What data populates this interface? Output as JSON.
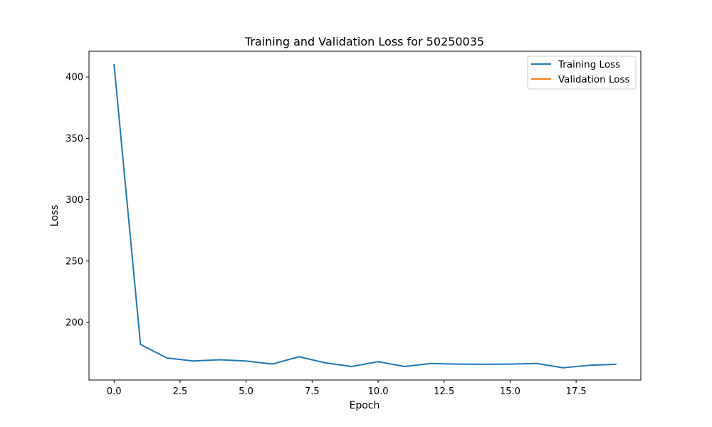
{
  "chart_data": {
    "type": "line",
    "title": "Training and Validation Loss for 50250035",
    "xlabel": "Epoch",
    "ylabel": "Loss",
    "xlim": [
      -0.95,
      19.95
    ],
    "ylim": [
      153,
      421
    ],
    "xticks": [
      0,
      2.5,
      5,
      7.5,
      10,
      12.5,
      15,
      17.5
    ],
    "xtick_labels": [
      "0.0",
      "2.5",
      "5.0",
      "7.5",
      "10.0",
      "12.5",
      "15.0",
      "17.5"
    ],
    "yticks": [
      200,
      250,
      300,
      350,
      400
    ],
    "ytick_labels": [
      "200",
      "250",
      "300",
      "350",
      "400"
    ],
    "grid": false,
    "legend_position": "top-right",
    "series": [
      {
        "name": "Training Loss",
        "color": "#1f77b4",
        "x": [
          0,
          1,
          2,
          3,
          4,
          5,
          6,
          7,
          8,
          9,
          10,
          11,
          12,
          13,
          14,
          15,
          16,
          17,
          18,
          19
        ],
        "values": [
          410,
          182,
          171,
          168.5,
          169.5,
          168.5,
          166,
          172,
          167,
          164,
          168,
          164,
          166.5,
          166,
          165.8,
          166,
          166.5,
          163,
          165,
          165.8
        ]
      },
      {
        "name": "Validation Loss",
        "color": "#ff7f0e",
        "x": [],
        "values": []
      }
    ]
  }
}
